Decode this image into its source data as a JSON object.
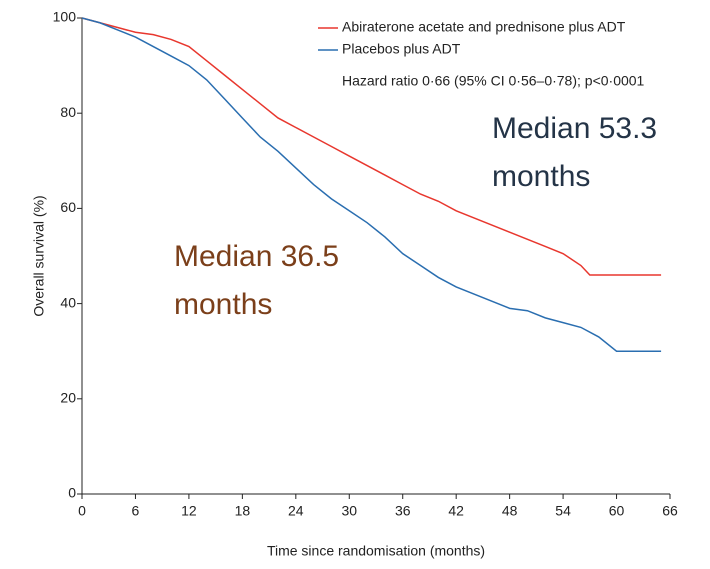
{
  "chart_data": {
    "type": "line",
    "xlabel": "Time since randomisation (months)",
    "ylabel": "Overall survival (%)",
    "xlim": [
      0,
      66
    ],
    "ylim": [
      0,
      100
    ],
    "xticks": [
      0,
      6,
      12,
      18,
      24,
      30,
      36,
      42,
      48,
      54,
      60,
      66
    ],
    "yticks": [
      0,
      20,
      40,
      60,
      80,
      100
    ],
    "series": [
      {
        "name": "Abiraterone acetate and prednisone plus ADT",
        "color": "#e8372e",
        "x": [
          0,
          2,
          4,
          6,
          8,
          10,
          12,
          14,
          16,
          18,
          20,
          22,
          24,
          26,
          28,
          30,
          32,
          34,
          36,
          38,
          40,
          42,
          44,
          46,
          48,
          50,
          52,
          54,
          56,
          57,
          60,
          65
        ],
        "values": [
          100,
          99,
          98,
          97,
          96.5,
          95.5,
          94,
          91,
          88,
          85,
          82,
          79,
          77,
          75,
          73,
          71,
          69,
          67,
          65,
          63,
          61.5,
          59.5,
          58,
          56.5,
          55,
          53.5,
          52,
          50.5,
          48,
          46,
          46,
          46
        ]
      },
      {
        "name": "Placebos plus ADT",
        "color": "#2a6eb0",
        "x": [
          0,
          2,
          4,
          6,
          8,
          10,
          12,
          14,
          16,
          18,
          20,
          22,
          24,
          26,
          28,
          30,
          32,
          34,
          36,
          38,
          40,
          42,
          44,
          46,
          48,
          50,
          52,
          54,
          56,
          58,
          60,
          65
        ],
        "values": [
          100,
          99,
          97.5,
          96,
          94,
          92,
          90,
          87,
          83,
          79,
          75,
          72,
          68.5,
          65,
          62,
          59.5,
          57,
          54,
          50.5,
          48,
          45.5,
          43.5,
          42,
          40.5,
          39,
          38.5,
          37,
          36,
          35,
          33,
          30,
          30
        ]
      }
    ],
    "annotations": [
      {
        "text": "Hazard ratio 0·66 (95% CI 0·56–0·78); p<0·0001"
      },
      {
        "lines": [
          "Median 53.3",
          "months"
        ],
        "color": "#243447"
      },
      {
        "lines": [
          "Median 36.5",
          "months"
        ],
        "color": "#7b3f1a"
      }
    ]
  }
}
